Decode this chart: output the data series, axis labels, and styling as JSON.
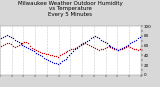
{
  "title": "Milwaukee Weather Outdoor Humidity\nvs Temperature\nEvery 5 Minutes",
  "background_color": "#d8d8d8",
  "plot_bg_color": "#ffffff",
  "red_color": "#cc0000",
  "blue_color": "#0000bb",
  "grid_color": "#bbbbbb",
  "title_fontsize": 4.0,
  "tick_fontsize": 3.0,
  "xlim": [
    0,
    288
  ],
  "ylim": [
    0,
    100
  ],
  "red_x": [
    2,
    6,
    10,
    14,
    18,
    22,
    26,
    30,
    34,
    38,
    42,
    46,
    50,
    54,
    58,
    62,
    66,
    70,
    74,
    78,
    82,
    86,
    90,
    94,
    98,
    102,
    106,
    110,
    114,
    118,
    122,
    126,
    130,
    134,
    138,
    142,
    146,
    150,
    154,
    158,
    162,
    166,
    170,
    174,
    178,
    182,
    186,
    190,
    194,
    198,
    202,
    206,
    210,
    214,
    218,
    222,
    226,
    230,
    234,
    238,
    242,
    246,
    250,
    254,
    258,
    262,
    266,
    270,
    274,
    278,
    282,
    286
  ],
  "red_y": [
    60,
    62,
    64,
    66,
    65,
    63,
    60,
    58,
    60,
    62,
    64,
    66,
    68,
    67,
    65,
    60,
    55,
    52,
    50,
    48,
    46,
    45,
    44,
    43,
    42,
    41,
    40,
    39,
    38,
    37,
    40,
    42,
    44,
    46,
    48,
    50,
    52,
    54,
    56,
    58,
    60,
    62,
    64,
    65,
    64,
    62,
    60,
    58,
    55,
    52,
    50,
    52,
    54,
    56,
    58,
    60,
    58,
    56,
    54,
    52,
    50,
    52,
    54,
    56,
    58,
    60,
    58,
    56,
    54,
    52,
    50,
    52
  ],
  "blue_x": [
    2,
    6,
    10,
    14,
    18,
    22,
    26,
    30,
    34,
    38,
    42,
    46,
    50,
    54,
    58,
    62,
    66,
    70,
    74,
    78,
    82,
    86,
    90,
    94,
    98,
    102,
    106,
    110,
    114,
    118,
    122,
    126,
    130,
    134,
    138,
    142,
    146,
    150,
    154,
    158,
    162,
    166,
    170,
    174,
    178,
    182,
    186,
    190,
    194,
    198,
    202,
    206,
    210,
    214,
    218,
    222,
    226,
    230,
    234,
    238,
    242,
    246,
    250,
    254,
    258,
    262,
    266,
    270,
    274,
    278,
    282,
    286
  ],
  "blue_y": [
    75,
    78,
    80,
    82,
    80,
    78,
    75,
    72,
    70,
    68,
    65,
    62,
    60,
    58,
    55,
    52,
    50,
    48,
    45,
    42,
    40,
    38,
    35,
    33,
    30,
    28,
    26,
    25,
    24,
    23,
    25,
    28,
    30,
    33,
    36,
    40,
    44,
    48,
    52,
    56,
    60,
    63,
    65,
    68,
    70,
    72,
    75,
    78,
    80,
    78,
    75,
    72,
    70,
    68,
    65,
    62,
    60,
    58,
    55,
    52,
    50,
    52,
    55,
    58,
    60,
    62,
    65,
    68,
    70,
    72,
    75,
    78
  ],
  "xtick_interval": 24,
  "ytick_vals": [
    0,
    10,
    20,
    30,
    40,
    50,
    60,
    70,
    80,
    90,
    100
  ],
  "ytick_labels": [
    "0",
    "",
    "20",
    "",
    "40",
    "",
    "60",
    "",
    "80",
    "",
    "100"
  ]
}
